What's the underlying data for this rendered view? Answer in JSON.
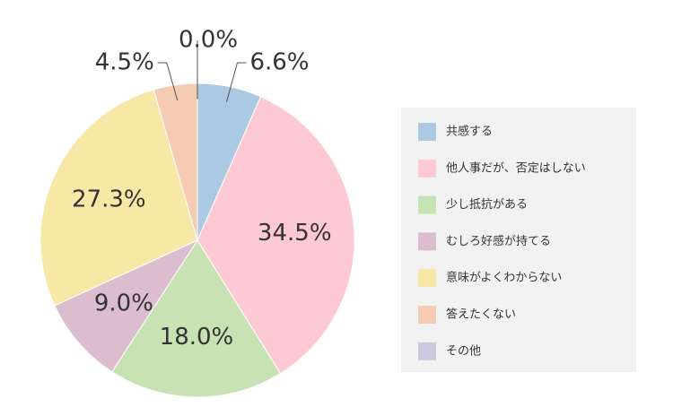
{
  "chart_data": {
    "type": "pie",
    "categories": [
      "共感する",
      "他人事だが、否定はしない",
      "少し抵抗がある",
      "むしろ好感が持てる",
      "意味がよくわからない",
      "答えたくない",
      "その他"
    ],
    "values": [
      6.6,
      34.5,
      18,
      9,
      27.3,
      4.5,
      0
    ],
    "value_labels": [
      "6.6%",
      "34.5%",
      "18.0%",
      "9.0%",
      "27.3%",
      "4.5%",
      "0.0%"
    ],
    "colors": [
      "#abc9e2",
      "#fdc9d3",
      "#c8e3b3",
      "#dbbdcf",
      "#f7e8a6",
      "#f5cbb3",
      "#cdc9df"
    ],
    "legend": "right"
  }
}
